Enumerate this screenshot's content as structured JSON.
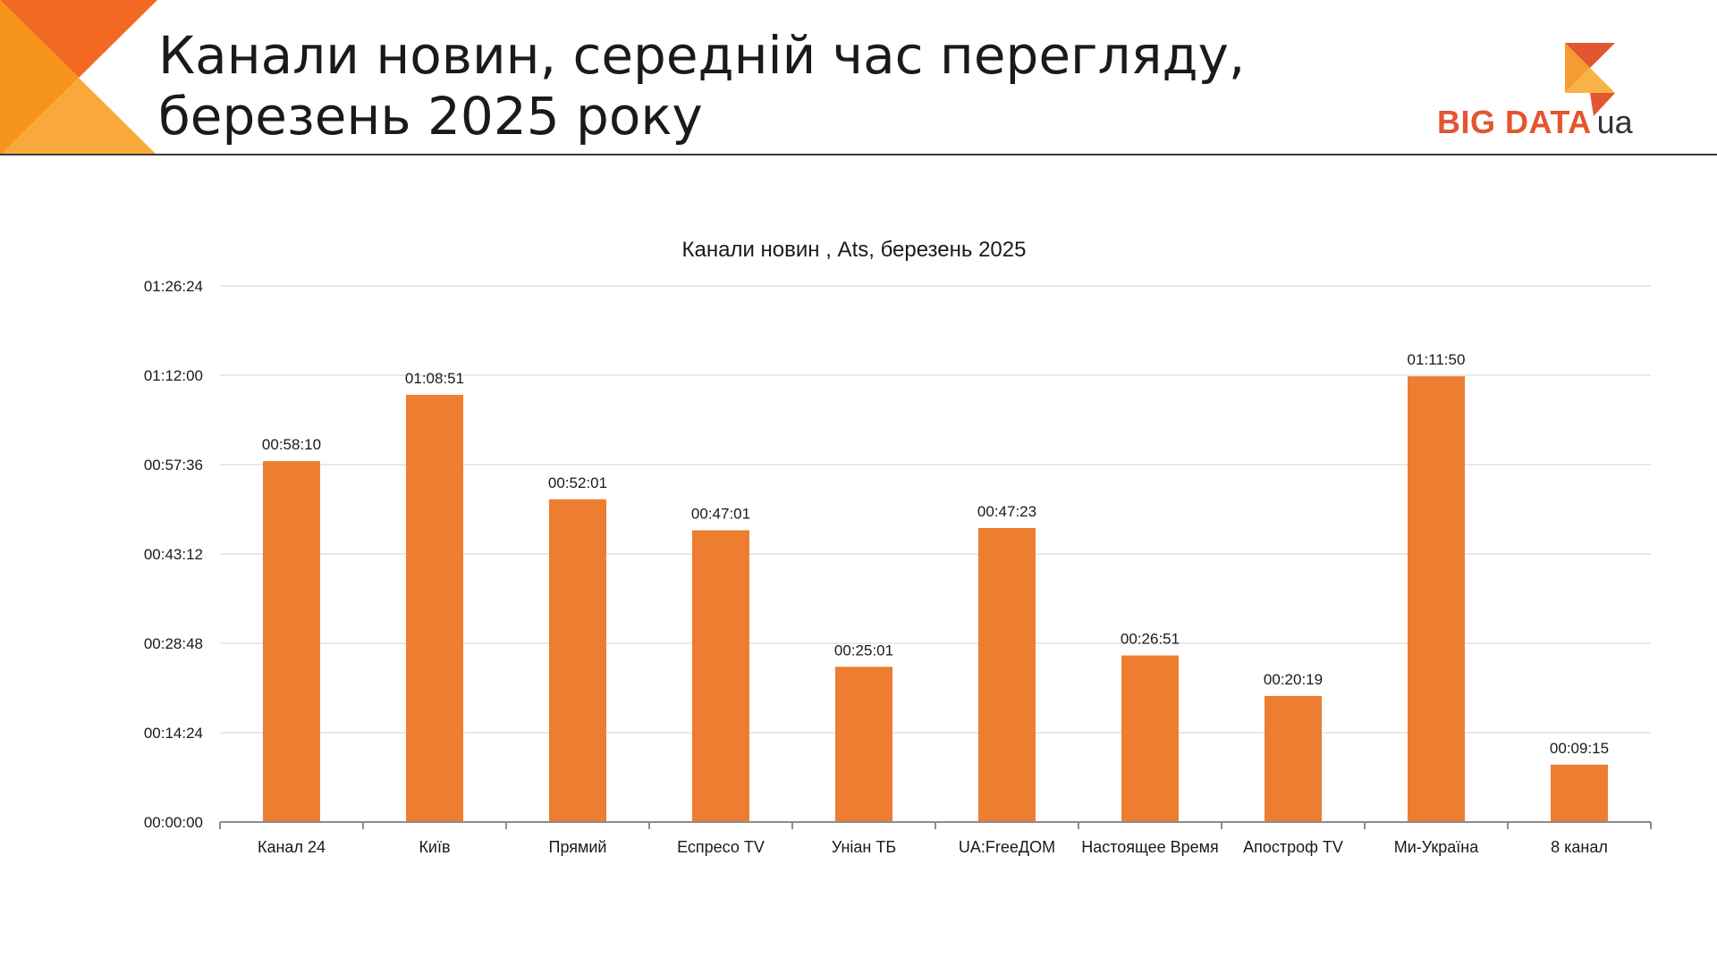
{
  "slide": {
    "title": "Канали новин, середній час перегляду,\nберезень 2025 року"
  },
  "logo": {
    "name": "BIG DATA",
    "suffix": "ua"
  },
  "colors": {
    "bar": "#ed7d31",
    "gridline": "#d9d9d9",
    "axis": "#8c8c8c",
    "text": "#1a1a1a",
    "corner_dark": "#f26a21",
    "corner_light": "#f9a93b",
    "logo_red": "#e25630",
    "logo_orange": "#f39c32"
  },
  "chart_data": {
    "type": "bar",
    "title": "Канали новин , Ats, березень 2025",
    "xlabel": "",
    "ylabel": "",
    "categories": [
      "Канал 24",
      "Київ",
      "Прямий",
      "Еспресо TV",
      "Уніан ТБ",
      "UA:FreeДОМ",
      "Настоящее Время",
      "Апостроф TV",
      "Ми-Україна",
      "8 канал"
    ],
    "values": [
      "00:58:10",
      "01:08:51",
      "00:52:01",
      "00:47:01",
      "00:25:01",
      "00:47:23",
      "00:26:51",
      "00:20:19",
      "01:11:50",
      "00:09:15"
    ],
    "ylim": [
      "00:00:00",
      "01:26:24"
    ],
    "yticks": [
      "00:00:00",
      "00:14:24",
      "00:28:48",
      "00:43:12",
      "00:57:36",
      "01:12:00",
      "01:26:24"
    ],
    "grid": true,
    "legend": "none"
  }
}
